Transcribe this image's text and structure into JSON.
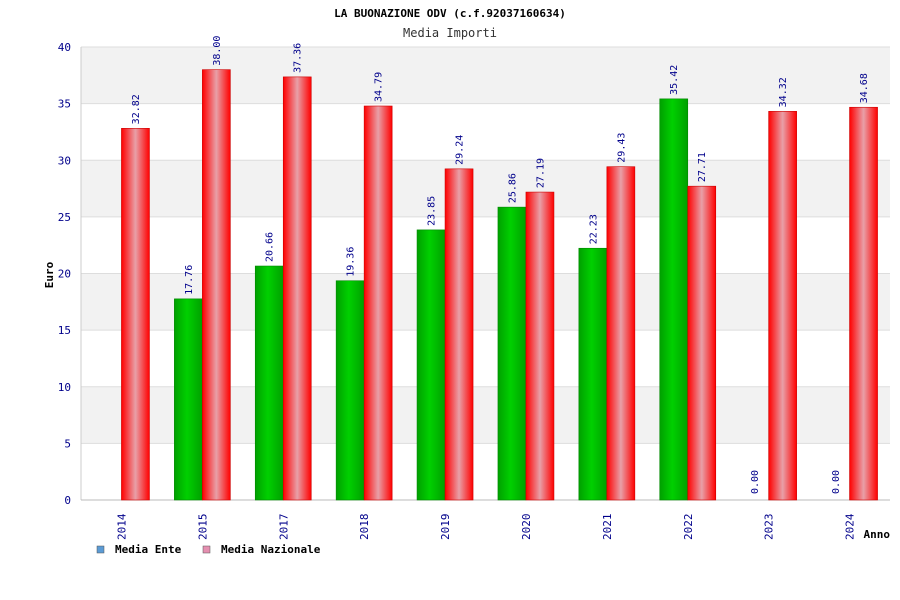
{
  "chart_data": {
    "type": "bar",
    "title": "LA BUONAZIONE ODV (c.f.92037160634)",
    "subtitle": "Media Importi",
    "xlabel": "Anno",
    "ylabel": "Euro",
    "ylim": [
      0,
      40
    ],
    "yticks": [
      "0",
      "5",
      "10",
      "15",
      "20",
      "25",
      "30",
      "35",
      "40"
    ],
    "grid": true,
    "legend_position": "bottom-left",
    "categories": [
      "2014",
      "2015",
      "2017",
      "2018",
      "2019",
      "2020",
      "2021",
      "2022",
      "2023",
      "2024"
    ],
    "series": [
      {
        "name": "Media Ente",
        "values": [
          null,
          17.76,
          20.66,
          19.36,
          23.85,
          25.86,
          22.23,
          35.42,
          0.0,
          0.0
        ],
        "labels": [
          "",
          "17.76",
          "20.66",
          "19.36",
          "23.85",
          "25.86",
          "22.23",
          "35.42",
          "0.00",
          "0.00"
        ],
        "color": "#00b000",
        "legend_color": "#5b9bd5"
      },
      {
        "name": "Media Nazionale",
        "values": [
          32.82,
          38.0,
          37.36,
          34.79,
          29.24,
          27.19,
          29.43,
          27.71,
          34.32,
          34.68
        ],
        "labels": [
          "32.82",
          "38.00",
          "37.36",
          "34.79",
          "29.24",
          "27.19",
          "29.43",
          "27.71",
          "34.32",
          "34.68"
        ],
        "color": "#ff0000",
        "legend_color": "#e58fb0"
      }
    ]
  }
}
